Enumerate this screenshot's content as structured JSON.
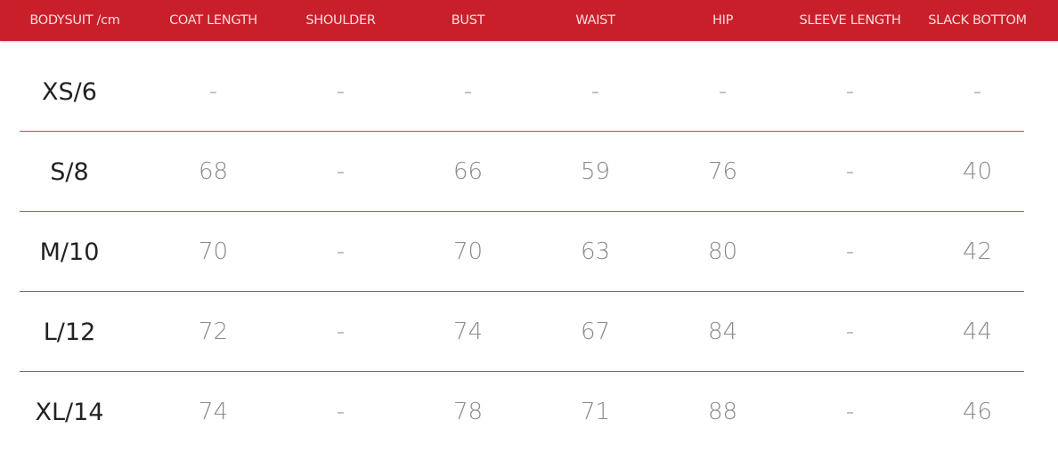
{
  "header_color": "#c91f2b",
  "table": {
    "columns": [
      "BODYSUIT /cm",
      "COAT LENGTH",
      "SHOULDER",
      "BUST",
      "WAIST",
      "HIP",
      "SLEEVE LENGTH",
      "SLACK BOTTOM"
    ],
    "rows": [
      {
        "size": "XS/6",
        "values": [
          "-",
          "-",
          "-",
          "-",
          "-",
          "-",
          "-"
        ]
      },
      {
        "size": "S/8",
        "values": [
          "68",
          "-",
          "66",
          "59",
          "76",
          "-",
          "40"
        ]
      },
      {
        "size": "M/10",
        "values": [
          "70",
          "-",
          "70",
          "63",
          "80",
          "-",
          "42"
        ]
      },
      {
        "size": "L/12",
        "values": [
          "72",
          "-",
          "74",
          "67",
          "84",
          "-",
          "44"
        ]
      },
      {
        "size": "XL/14",
        "values": [
          "74",
          "-",
          "78",
          "71",
          "88",
          "-",
          "46"
        ]
      }
    ]
  }
}
